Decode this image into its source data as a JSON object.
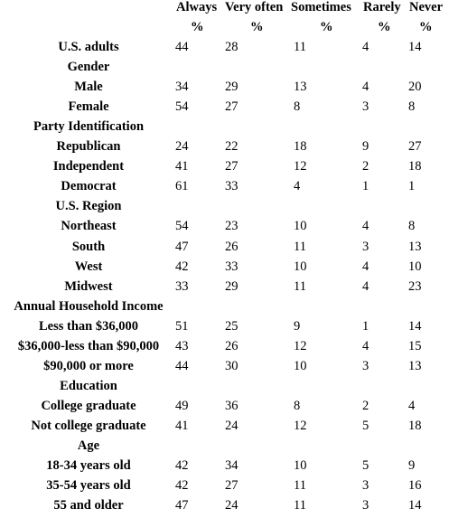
{
  "columns": [
    "Always",
    "Very often",
    "Sometimes",
    "Rarely",
    "Never"
  ],
  "unit": "%",
  "rows": [
    {
      "label": "U.S. adults",
      "type": "data",
      "values": [
        "44",
        "28",
        "11",
        "4",
        "14"
      ]
    },
    {
      "label": "Gender",
      "type": "group"
    },
    {
      "label": "Male",
      "type": "data",
      "values": [
        "34",
        "29",
        "13",
        "4",
        "20"
      ]
    },
    {
      "label": "Female",
      "type": "data",
      "values": [
        "54",
        "27",
        "8",
        "3",
        "8"
      ]
    },
    {
      "label": "Party Identification",
      "type": "group"
    },
    {
      "label": "Republican",
      "type": "data",
      "values": [
        "24",
        "22",
        "18",
        "9",
        "27"
      ]
    },
    {
      "label": "Independent",
      "type": "data",
      "values": [
        "41",
        "27",
        "12",
        "2",
        "18"
      ]
    },
    {
      "label": "Democrat",
      "type": "data",
      "values": [
        "61",
        "33",
        "4",
        "1",
        "1"
      ]
    },
    {
      "label": "U.S. Region",
      "type": "group"
    },
    {
      "label": "Northeast",
      "type": "data",
      "values": [
        "54",
        "23",
        "10",
        "4",
        "8"
      ]
    },
    {
      "label": "South",
      "type": "data",
      "values": [
        "47",
        "26",
        "11",
        "3",
        "13"
      ]
    },
    {
      "label": "West",
      "type": "data",
      "values": [
        "42",
        "33",
        "10",
        "4",
        "10"
      ]
    },
    {
      "label": "Midwest",
      "type": "data",
      "values": [
        "33",
        "29",
        "11",
        "4",
        "23"
      ]
    },
    {
      "label": "Annual Household Income",
      "type": "group"
    },
    {
      "label": "Less than $36,000",
      "type": "data",
      "values": [
        "51",
        "25",
        "9",
        "1",
        "14"
      ]
    },
    {
      "label": "$36,000-less than $90,000",
      "type": "data",
      "values": [
        "43",
        "26",
        "12",
        "4",
        "15"
      ]
    },
    {
      "label": "$90,000 or more",
      "type": "data",
      "values": [
        "44",
        "30",
        "10",
        "3",
        "13"
      ]
    },
    {
      "label": "Education",
      "type": "group"
    },
    {
      "label": "College graduate",
      "type": "data",
      "values": [
        "49",
        "36",
        "8",
        "2",
        "4"
      ]
    },
    {
      "label": "Not college graduate",
      "type": "data",
      "values": [
        "41",
        "24",
        "12",
        "5",
        "18"
      ]
    },
    {
      "label": "Age",
      "type": "group"
    },
    {
      "label": "18-34 years old",
      "type": "data",
      "values": [
        "42",
        "34",
        "10",
        "5",
        "9"
      ]
    },
    {
      "label": "35-54 years old",
      "type": "data",
      "values": [
        "42",
        "27",
        "11",
        "3",
        "16"
      ]
    },
    {
      "label": "55 and older",
      "type": "data",
      "values": [
        "47",
        "24",
        "11",
        "3",
        "14"
      ]
    }
  ]
}
